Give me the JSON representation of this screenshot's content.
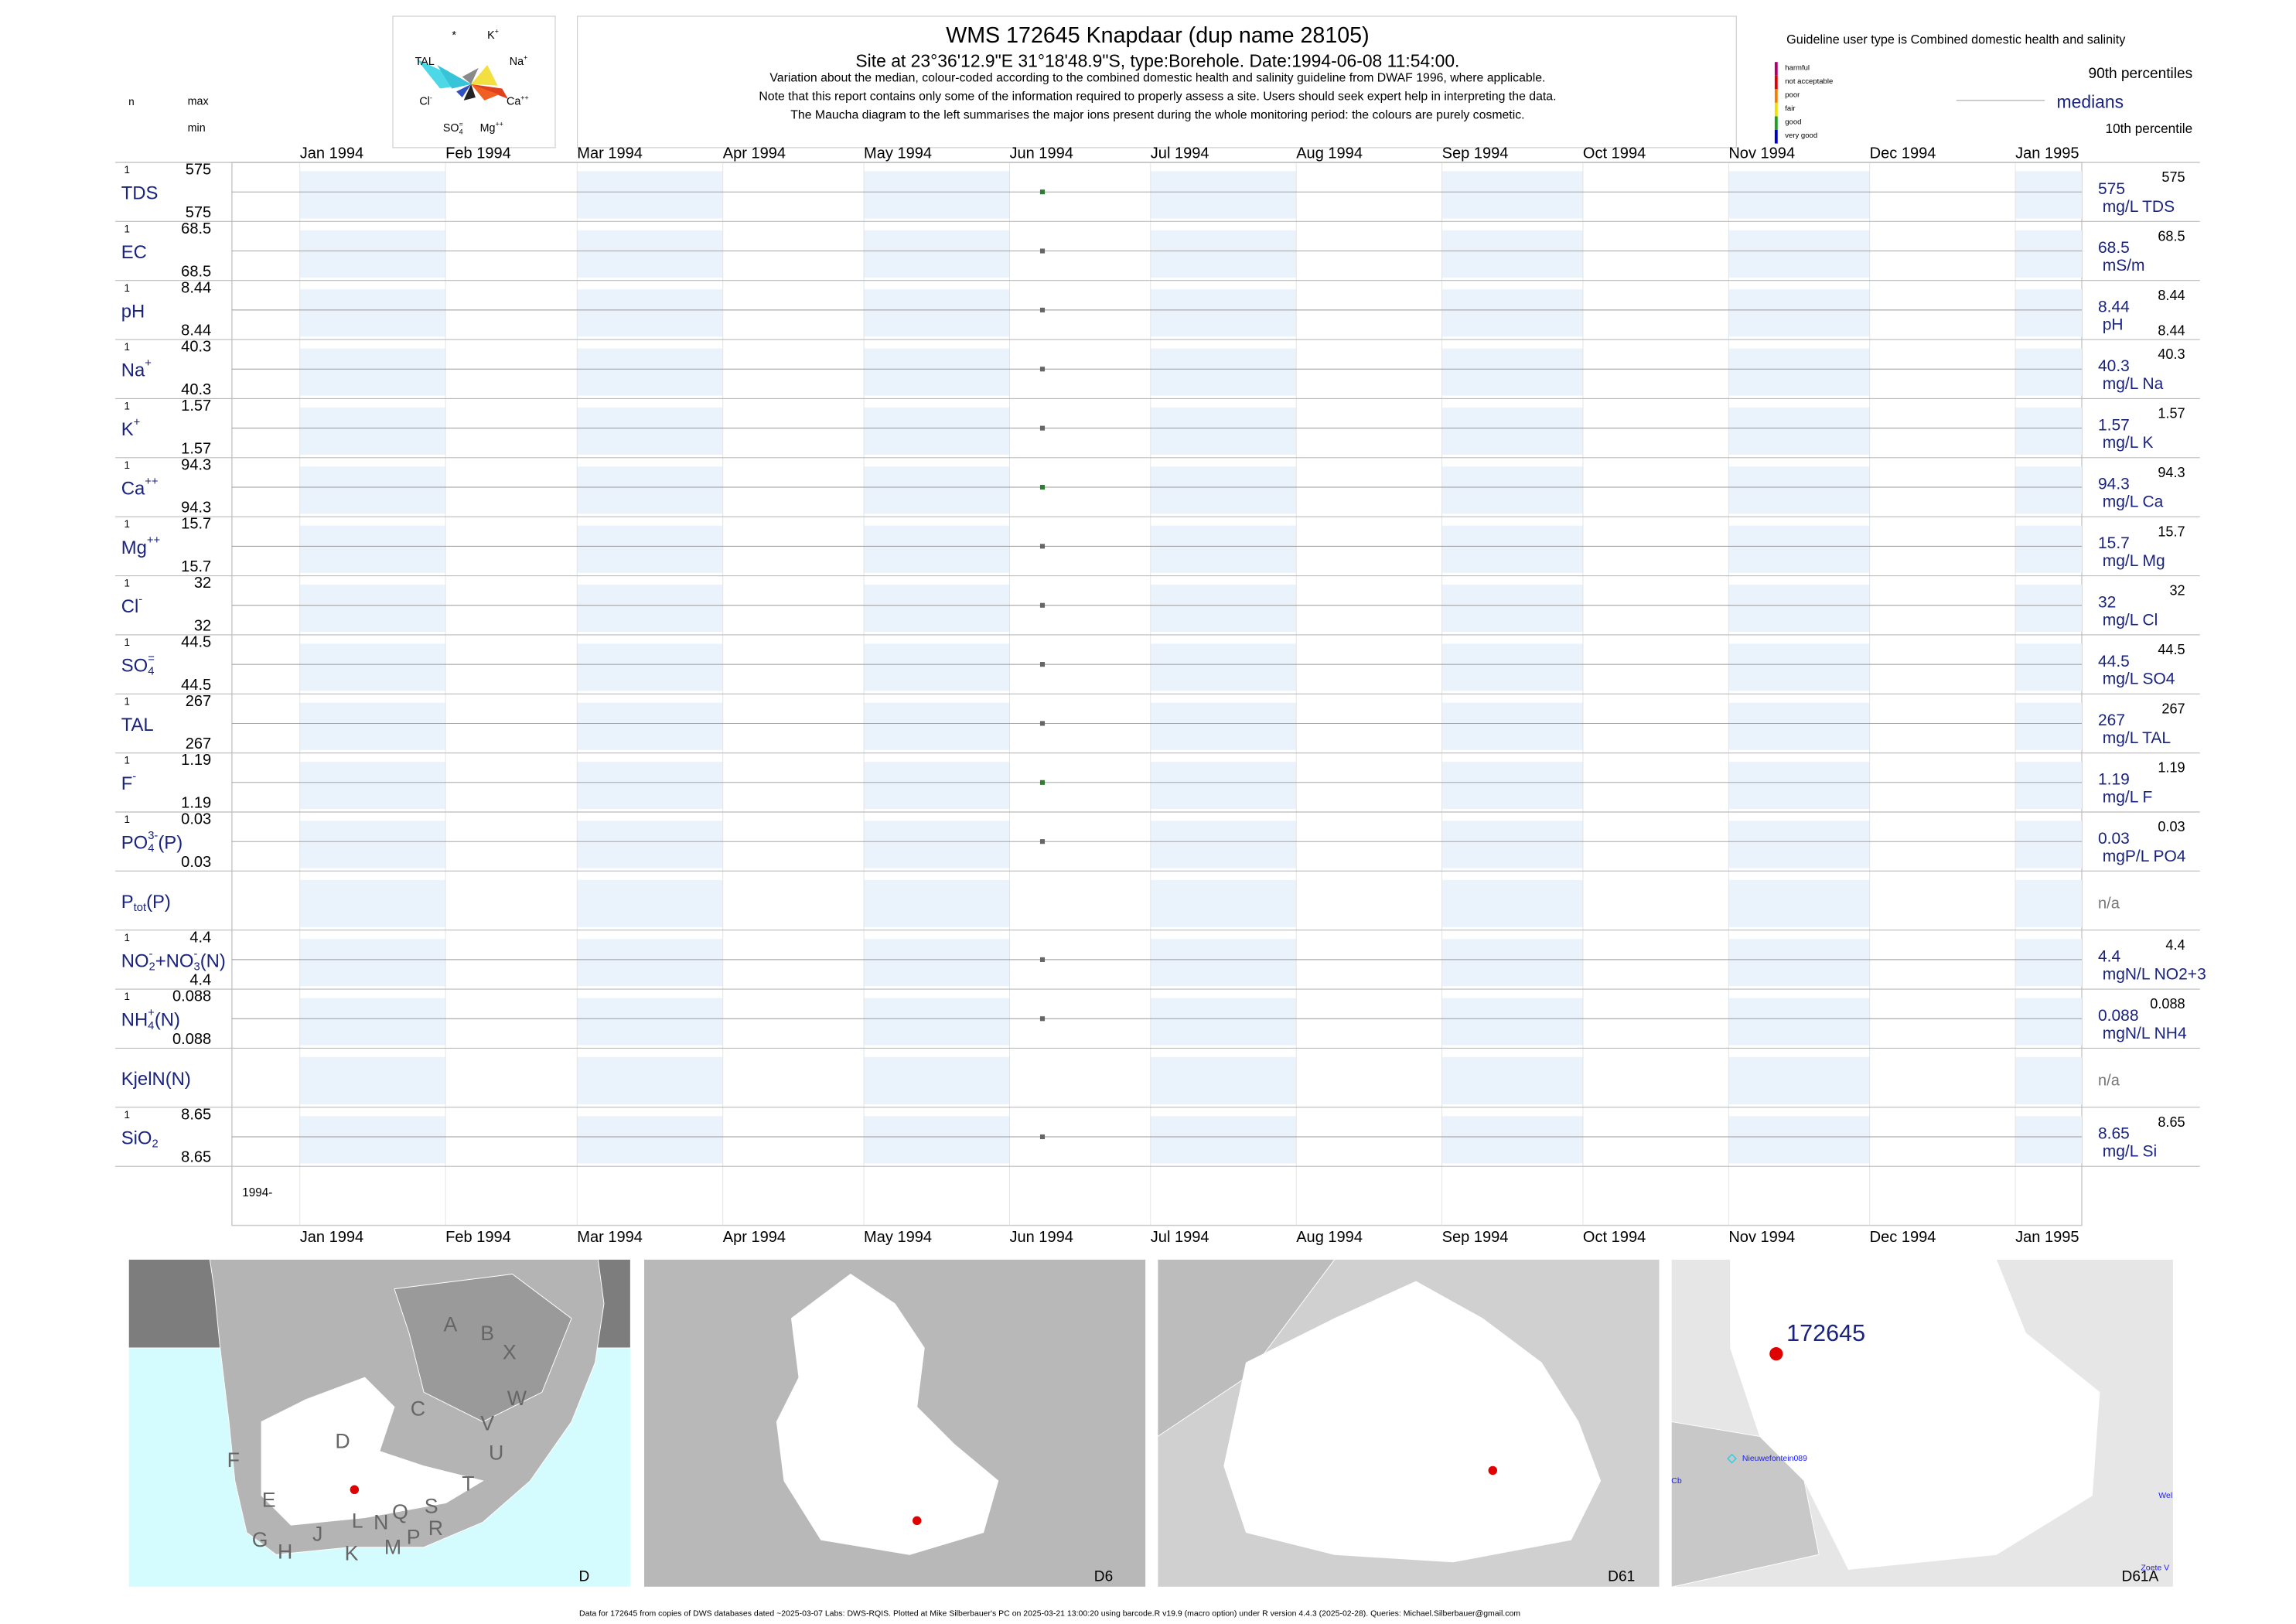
{
  "header": {
    "title": "WMS 172645  Knapdaar (dup name 28105)",
    "subtitle": "Site at 23°36'12.9\"E 31°18'48.9\"S, type:Borehole. Date:1994-06-08 11:54:00.",
    "notes": [
      "Variation about the median,  colour-coded according to the combined domestic health and salinity guideline from DWAF 1996, where applicable.",
      "Note that this report contains only some of the information required to properly assess a site. Users should seek expert help in interpreting the data.",
      "The Maucha diagram to the left summarises the major ions present during the whole monitoring period: the colours are purely cosmetic."
    ]
  },
  "maucha": {
    "labels": [
      [
        {
          "text": "*"
        }
      ],
      [
        {
          "text": "K"
        },
        {
          "text": "+",
          "pos": "sup"
        }
      ],
      [
        {
          "text": "TAL"
        }
      ],
      [
        {
          "text": "Na"
        },
        {
          "text": "+",
          "pos": "sup"
        }
      ],
      [
        {
          "text": "Cl"
        },
        {
          "text": "-",
          "pos": "sup"
        }
      ],
      [
        {
          "text": "Ca"
        },
        {
          "text": "++",
          "pos": "sup"
        }
      ],
      [
        {
          "text": "SO"
        },
        {
          "text": "=",
          "pos": "sup"
        },
        {
          "text": "4",
          "pos": "sub"
        }
      ],
      [
        {
          "text": "Mg"
        },
        {
          "text": "++",
          "pos": "sup"
        }
      ]
    ]
  },
  "guideline": {
    "title": "Guideline user type is Combined domestic health and salinity",
    "levels": [
      "harmful",
      "not acceptable",
      "poor",
      "fair",
      "good",
      "very good"
    ],
    "colors": [
      "#b0006e",
      "#e00000",
      "#f08000",
      "#f0e000",
      "#20a020",
      "#0000c0"
    ],
    "legend": {
      "p90": "90th percentiles",
      "median": "medians",
      "p10": "10th percentile"
    }
  },
  "columns": {
    "n": "n",
    "max": "max",
    "min": "min"
  },
  "months": [
    "Jan 1994",
    "Feb 1994",
    "Mar 1994",
    "Apr 1994",
    "May 1994",
    "Jun 1994",
    "Jul 1994",
    "Aug 1994",
    "Sep 1994",
    "Oct 1994",
    "Nov 1994",
    "Dec 1994",
    "Jan 1995"
  ],
  "sample_date": "1994-06-08",
  "period_label": "1994-",
  "rows": [
    {
      "label": [
        {
          "text": "TDS"
        }
      ],
      "n": 1,
      "max": 575,
      "min": 575,
      "median": 575,
      "p90": 575,
      "unit": "mg/L TDS",
      "color": "#2e7d32"
    },
    {
      "label": [
        {
          "text": "EC"
        }
      ],
      "n": 1,
      "max": 68.5,
      "min": 68.5,
      "median": 68.5,
      "p90": 68.5,
      "unit": "mS/m",
      "color": "#666666"
    },
    {
      "label": [
        {
          "text": "pH"
        }
      ],
      "n": 1,
      "max": 8.44,
      "min": 8.44,
      "median": 8.44,
      "p90": 8.44,
      "p10": 8.44,
      "unit": "pH",
      "color": "#666666"
    },
    {
      "label": [
        {
          "text": "Na"
        },
        {
          "text": "+",
          "pos": "sup"
        }
      ],
      "n": 1,
      "max": 40.3,
      "min": 40.3,
      "median": 40.3,
      "p90": 40.3,
      "unit": "mg/L Na",
      "color": "#666666"
    },
    {
      "label": [
        {
          "text": "K"
        },
        {
          "text": "+",
          "pos": "sup"
        }
      ],
      "n": 1,
      "max": 1.57,
      "min": 1.57,
      "median": 1.57,
      "p90": 1.57,
      "unit": "mg/L K",
      "color": "#666666"
    },
    {
      "label": [
        {
          "text": "Ca"
        },
        {
          "text": "++",
          "pos": "sup"
        }
      ],
      "n": 1,
      "max": 94.3,
      "min": 94.3,
      "median": 94.3,
      "p90": 94.3,
      "unit": "mg/L Ca",
      "color": "#2e7d32"
    },
    {
      "label": [
        {
          "text": "Mg"
        },
        {
          "text": "++",
          "pos": "sup"
        }
      ],
      "n": 1,
      "max": 15.7,
      "min": 15.7,
      "median": 15.7,
      "p90": 15.7,
      "unit": "mg/L Mg",
      "color": "#666666"
    },
    {
      "label": [
        {
          "text": "Cl"
        },
        {
          "text": "-",
          "pos": "sup"
        }
      ],
      "n": 1,
      "max": 32,
      "min": 32,
      "median": 32,
      "p90": 32,
      "unit": "mg/L Cl",
      "color": "#666666"
    },
    {
      "label": [
        {
          "text": "SO"
        },
        {
          "text": "=",
          "pos": "sup"
        },
        {
          "text": "4",
          "pos": "sub"
        }
      ],
      "n": 1,
      "max": 44.5,
      "min": 44.5,
      "median": 44.5,
      "p90": 44.5,
      "unit": "mg/L SO4",
      "color": "#666666"
    },
    {
      "label": [
        {
          "text": "TAL"
        }
      ],
      "n": 1,
      "max": 267,
      "min": 267,
      "median": 267,
      "p90": 267,
      "unit": "mg/L TAL",
      "color": "#666666"
    },
    {
      "label": [
        {
          "text": "F"
        },
        {
          "text": "-",
          "pos": "sup"
        }
      ],
      "n": 1,
      "max": 1.19,
      "min": 1.19,
      "median": 1.19,
      "p90": 1.19,
      "unit": "mg/L F",
      "color": "#2e7d32"
    },
    {
      "label": [
        {
          "text": "PO"
        },
        {
          "text": "3-",
          "pos": "sup"
        },
        {
          "text": "4",
          "pos": "sub"
        },
        {
          "text": "(P)"
        }
      ],
      "n": 1,
      "max": 0.03,
      "min": 0.03,
      "median": 0.03,
      "p90": 0.03,
      "unit": "mgP/L PO4",
      "color": "#666666"
    },
    {
      "label": [
        {
          "text": "P"
        },
        {
          "text": "tot",
          "pos": "sub"
        },
        {
          "text": "(P)"
        }
      ],
      "na": "n/a"
    },
    {
      "label": [
        {
          "text": "NO"
        },
        {
          "text": "-",
          "pos": "sup"
        },
        {
          "text": "2",
          "pos": "sub"
        },
        {
          "text": "+NO"
        },
        {
          "text": "-",
          "pos": "sup"
        },
        {
          "text": "3",
          "pos": "sub"
        },
        {
          "text": "(N)"
        }
      ],
      "n": 1,
      "max": 4.4,
      "min": 4.4,
      "median": 4.4,
      "p90": 4.4,
      "unit": "mgN/L NO2+3",
      "color": "#666666"
    },
    {
      "label": [
        {
          "text": "NH"
        },
        {
          "text": "+",
          "pos": "sup"
        },
        {
          "text": "4",
          "pos": "sub"
        },
        {
          "text": "(N)"
        }
      ],
      "n": 1,
      "max": 0.088,
      "min": 0.088,
      "median": 0.088,
      "p90": 0.088,
      "unit": "mgN/L NH4",
      "color": "#666666"
    },
    {
      "label": [
        {
          "text": "KjelN(N)"
        }
      ],
      "na": "n/a"
    },
    {
      "label": [
        {
          "text": "SiO"
        },
        {
          "text": "2",
          "pos": "sub"
        }
      ],
      "n": 1,
      "max": 8.65,
      "min": 8.65,
      "median": 8.65,
      "p90": 8.65,
      "unit": "mg/L Si",
      "color": "#666666"
    }
  ],
  "maps": [
    {
      "label": "D",
      "regions": [
        "A",
        "B",
        "X",
        "C",
        "W",
        "D",
        "V",
        "U",
        "F",
        "T",
        "E",
        "S",
        "Q",
        "N",
        "L",
        "R",
        "P",
        "M",
        "K",
        "J",
        "H",
        "G"
      ]
    },
    {
      "label": "D6"
    },
    {
      "label": "D61"
    },
    {
      "label": "D61A",
      "site": "172645",
      "places": [
        "Nieuwefontein089",
        "Cb",
        "Wel",
        "Zoete V"
      ]
    }
  ],
  "footer": "Data for 172645 from copies of DWS databases dated ~2025-03-07 Labs: DWS-RQIS. Plotted at Mike Silberbauer's PC on 2025-03-21 13:00:20 using barcode.R v19.9 (macro option) under R version 4.4.3 (2025-02-28). Queries: Michael.Silberbauer@gmail.com"
}
